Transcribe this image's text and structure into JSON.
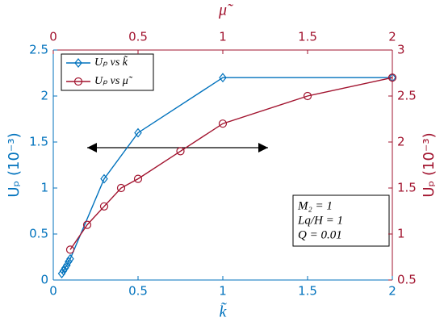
{
  "chart_data": {
    "type": "line",
    "xlabel": "k̃",
    "x2label": "μ̃",
    "ylabel": "Uₚ (10⁻³)",
    "y2label": "Uₚ (10⁻³)",
    "xlim": [
      0,
      2
    ],
    "xticks": [
      0,
      0.5,
      1,
      1.5,
      2
    ],
    "x2lim": [
      0,
      2
    ],
    "x2ticks": [
      0,
      0.5,
      1,
      1.5,
      2
    ],
    "ylim": [
      0,
      2.5
    ],
    "yticks": [
      0,
      0.5,
      1,
      1.5,
      2,
      2.5
    ],
    "y2lim": [
      0.5,
      3
    ],
    "y2ticks": [
      0.5,
      1,
      1.5,
      2,
      2.5,
      3
    ],
    "legend": "upper left",
    "series": [
      {
        "name": "Uₚ vs k̃",
        "color": "#0072BD",
        "marker": "diamond",
        "x": [
          0.05,
          0.06,
          0.07,
          0.08,
          0.09,
          0.1,
          0.3,
          0.5,
          1,
          2
        ],
        "values": [
          0.07,
          0.1,
          0.13,
          0.16,
          0.2,
          0.23,
          1.1,
          1.6,
          2.2,
          2.2
        ]
      },
      {
        "name": "Uₚ vs μ̃",
        "color": "#A2142F",
        "marker": "circle",
        "axis": "y2",
        "xaxis": "x2",
        "x": [
          0.1,
          0.2,
          0.3,
          0.4,
          0.5,
          0.75,
          1,
          1.5,
          2
        ],
        "values": [
          0.83,
          1.1,
          1.3,
          1.5,
          1.6,
          1.9,
          2.2,
          2.5,
          2.7
        ]
      }
    ],
    "annotations": [
      "M₂ = 1",
      "Lq/H = 1",
      "Q = 0.01"
    ]
  }
}
